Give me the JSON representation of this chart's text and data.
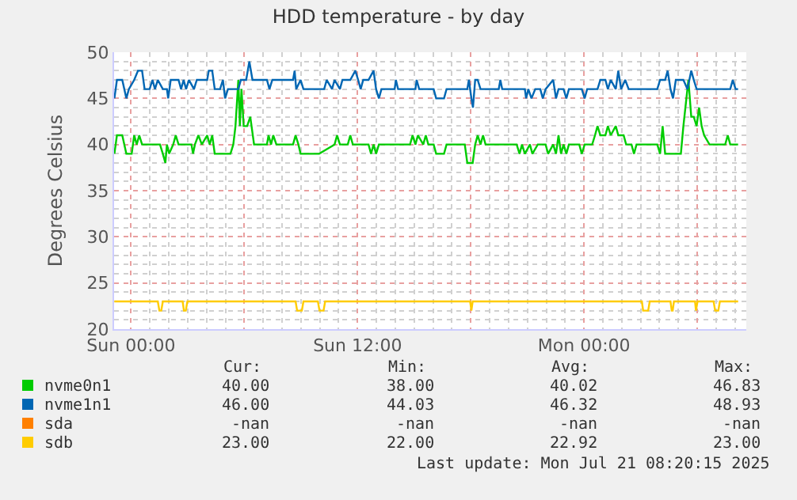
{
  "chart_data": {
    "type": "line",
    "title": "HDD temperature - by day",
    "ylabel": "Degrees Celsius",
    "xlim": [
      "2025-07-19T23:06",
      "2025-07-21T08:36"
    ],
    "ylim": [
      20,
      50
    ],
    "xticks": [
      {
        "value": "2025-07-20T00:00",
        "label": "Sun 00:00"
      },
      {
        "value": "2025-07-20T06:00",
        "label": null
      },
      {
        "value": "2025-07-20T12:00",
        "label": "Sun 12:00"
      },
      {
        "value": "2025-07-20T18:00",
        "label": null
      },
      {
        "value": "2025-07-21T00:00",
        "label": "Mon 00:00"
      },
      {
        "value": "2025-07-21T06:00",
        "label": null
      }
    ],
    "yticks": [
      20,
      25,
      30,
      35,
      40,
      45,
      50
    ],
    "grid": true,
    "legend": "bottom",
    "marker": "none",
    "line_style": "solid",
    "series": [
      {
        "name": "nvme0n1",
        "color": "#00cc00",
        "x": [
          "2025-07-19T23:07",
          "2025-07-19T23:15",
          "2025-07-19T23:32",
          "2025-07-19T23:45",
          "2025-07-20T00:02",
          "2025-07-20T00:10",
          "2025-07-20T00:18",
          "2025-07-20T00:26",
          "2025-07-20T00:35",
          "2025-07-20T01:32",
          "2025-07-20T01:41",
          "2025-07-20T01:49",
          "2025-07-20T01:54",
          "2025-07-20T02:01",
          "2025-07-20T02:14",
          "2025-07-20T02:22",
          "2025-07-20T02:31",
          "2025-07-20T03:12",
          "2025-07-20T03:17",
          "2025-07-20T03:23",
          "2025-07-20T03:34",
          "2025-07-20T03:45",
          "2025-07-20T04:02",
          "2025-07-20T04:10",
          "2025-07-20T04:18",
          "2025-07-20T04:26",
          "2025-07-20T05:16",
          "2025-07-20T05:25",
          "2025-07-20T05:32",
          "2025-07-20T05:41",
          "2025-07-20T05:46",
          "2025-07-20T05:51",
          "2025-07-20T05:58",
          "2025-07-20T06:09",
          "2025-07-20T06:19",
          "2025-07-20T06:31",
          "2025-07-20T07:12",
          "2025-07-20T07:17",
          "2025-07-20T07:25",
          "2025-07-20T07:32",
          "2025-07-20T07:42",
          "2025-07-20T08:35",
          "2025-07-20T08:43",
          "2025-07-20T08:52",
          "2025-07-20T08:59",
          "2025-07-20T09:58",
          "2025-07-20T10:47",
          "2025-07-20T10:55",
          "2025-07-20T11:04",
          "2025-07-20T11:29",
          "2025-07-20T11:37",
          "2025-07-20T11:45",
          "2025-07-20T12:35",
          "2025-07-20T12:43",
          "2025-07-20T12:51",
          "2025-07-20T12:59",
          "2025-07-20T13:08",
          "2025-07-20T14:47",
          "2025-07-20T14:55",
          "2025-07-20T15:04",
          "2025-07-20T15:12",
          "2025-07-20T15:29",
          "2025-07-20T15:37",
          "2025-07-20T15:45",
          "2025-07-20T16:02",
          "2025-07-20T16:10",
          "2025-07-20T16:35",
          "2025-07-20T16:43",
          "2025-07-20T17:41",
          "2025-07-20T17:49",
          "2025-07-20T18:06",
          "2025-07-20T18:14",
          "2025-07-20T18:22",
          "2025-07-20T18:31",
          "2025-07-20T18:39",
          "2025-07-20T18:47",
          "2025-07-20T20:26",
          "2025-07-20T20:35",
          "2025-07-20T20:43",
          "2025-07-20T20:52",
          "2025-07-20T21:08",
          "2025-07-20T21:16",
          "2025-07-20T21:33",
          "2025-07-20T21:58",
          "2025-07-20T22:06",
          "2025-07-20T22:22",
          "2025-07-20T22:31",
          "2025-07-20T22:39",
          "2025-07-20T22:47",
          "2025-07-20T22:55",
          "2025-07-20T23:04",
          "2025-07-20T23:12",
          "2025-07-20T23:45",
          "2025-07-20T23:53",
          "2025-07-21T00:02",
          "2025-07-21T00:26",
          "2025-07-21T00:35",
          "2025-07-21T00:43",
          "2025-07-21T00:52",
          "2025-07-21T01:08",
          "2025-07-21T01:16",
          "2025-07-21T01:25",
          "2025-07-21T01:41",
          "2025-07-21T01:49",
          "2025-07-21T02:06",
          "2025-07-21T02:14",
          "2025-07-21T02:31",
          "2025-07-21T02:39",
          "2025-07-21T02:47",
          "2025-07-21T03:53",
          "2025-07-21T04:02",
          "2025-07-21T04:10",
          "2025-07-21T04:18",
          "2025-07-21T05:08",
          "2025-07-21T05:16",
          "2025-07-21T05:32",
          "2025-07-21T05:41",
          "2025-07-21T05:49",
          "2025-07-21T05:58",
          "2025-07-21T06:06",
          "2025-07-21T06:14",
          "2025-07-21T06:22",
          "2025-07-21T06:39",
          "2025-07-21T07:29",
          "2025-07-21T07:37",
          "2025-07-21T07:45",
          "2025-07-21T08:10"
        ],
        "values": [
          39,
          41,
          41,
          39,
          39,
          41,
          40,
          41,
          40,
          40,
          39,
          38,
          40,
          39,
          40,
          41,
          40,
          40,
          39,
          40,
          41,
          40,
          41,
          40,
          41,
          39,
          39,
          40,
          42,
          47,
          42,
          46,
          42,
          42,
          43,
          40,
          40,
          41,
          40,
          41,
          40,
          40,
          41,
          40,
          39,
          39,
          40,
          41,
          40,
          40,
          41,
          40,
          40,
          39,
          40,
          39,
          40,
          40,
          41,
          40,
          41,
          40,
          41,
          40,
          40,
          39,
          39,
          40,
          40,
          38,
          38,
          40,
          41,
          40,
          41,
          40,
          40,
          39,
          40,
          39,
          40,
          39,
          40,
          40,
          39,
          40,
          39,
          41,
          39,
          40,
          39,
          40,
          40,
          39,
          40,
          40,
          41,
          42,
          41,
          41,
          42,
          41,
          42,
          41,
          41,
          40,
          40,
          39,
          40,
          40,
          39,
          42,
          39,
          39,
          42,
          47,
          43,
          43,
          42,
          44,
          42,
          41,
          40,
          40,
          41,
          40,
          40
        ]
      },
      {
        "name": "nvme1n1",
        "color": "#0066b3",
        "x": [
          "2025-07-19T23:07",
          "2025-07-19T23:15",
          "2025-07-19T23:32",
          "2025-07-19T23:45",
          "2025-07-19T23:53",
          "2025-07-20T00:10",
          "2025-07-20T00:22",
          "2025-07-20T00:35",
          "2025-07-20T00:43",
          "2025-07-20T00:59",
          "2025-07-20T01:08",
          "2025-07-20T01:16",
          "2025-07-20T01:25",
          "2025-07-20T01:41",
          "2025-07-20T01:54",
          "2025-07-20T01:58",
          "2025-07-20T02:06",
          "2025-07-20T02:31",
          "2025-07-20T02:39",
          "2025-07-20T02:47",
          "2025-07-20T02:55",
          "2025-07-20T03:04",
          "2025-07-20T03:20",
          "2025-07-20T03:29",
          "2025-07-20T04:02",
          "2025-07-20T04:07",
          "2025-07-20T04:18",
          "2025-07-20T04:26",
          "2025-07-20T04:43",
          "2025-07-20T04:52",
          "2025-07-20T04:59",
          "2025-07-20T05:08",
          "2025-07-20T05:41",
          "2025-07-20T05:49",
          "2025-07-20T06:06",
          "2025-07-20T06:16",
          "2025-07-20T06:26",
          "2025-07-20T07:12",
          "2025-07-20T07:20",
          "2025-07-20T07:29",
          "2025-07-20T08:35",
          "2025-07-20T08:40",
          "2025-07-20T08:45",
          "2025-07-20T08:59",
          "2025-07-20T09:08",
          "2025-07-20T09:41",
          "2025-07-20T10:14",
          "2025-07-20T10:22",
          "2025-07-20T10:39",
          "2025-07-20T10:47",
          "2025-07-20T11:04",
          "2025-07-20T11:12",
          "2025-07-20T11:37",
          "2025-07-20T11:53",
          "2025-07-20T12:02",
          "2025-07-20T12:10",
          "2025-07-20T12:18",
          "2025-07-20T12:35",
          "2025-07-20T12:51",
          "2025-07-20T12:59",
          "2025-07-20T13:08",
          "2025-07-20T13:16",
          "2025-07-20T13:58",
          "2025-07-20T14:02",
          "2025-07-20T14:09",
          "2025-07-20T15:04",
          "2025-07-20T15:08",
          "2025-07-20T15:16",
          "2025-07-20T16:02",
          "2025-07-20T16:10",
          "2025-07-20T16:35",
          "2025-07-20T16:43",
          "2025-07-20T17:49",
          "2025-07-20T17:54",
          "2025-07-20T18:02",
          "2025-07-20T18:07",
          "2025-07-20T18:14",
          "2025-07-20T18:22",
          "2025-07-20T18:31",
          "2025-07-20T19:29",
          "2025-07-20T19:34",
          "2025-07-20T19:40",
          "2025-07-20T20:52",
          "2025-07-20T20:56",
          "2025-07-20T21:03",
          "2025-07-20T21:13",
          "2025-07-20T21:25",
          "2025-07-20T21:41",
          "2025-07-20T21:49",
          "2025-07-20T21:58",
          "2025-07-20T22:22",
          "2025-07-20T22:31",
          "2025-07-20T22:39",
          "2025-07-20T22:55",
          "2025-07-20T23:04",
          "2025-07-20T23:12",
          "2025-07-20T23:53",
          "2025-07-21T00:02",
          "2025-07-21T00:10",
          "2025-07-21T00:43",
          "2025-07-21T00:52",
          "2025-07-21T01:08",
          "2025-07-21T01:16",
          "2025-07-21T01:25",
          "2025-07-21T01:41",
          "2025-07-21T01:49",
          "2025-07-21T01:58",
          "2025-07-21T02:11",
          "2025-07-21T02:22",
          "2025-07-21T03:53",
          "2025-07-21T04:02",
          "2025-07-21T04:18",
          "2025-07-21T04:26",
          "2025-07-21T04:35",
          "2025-07-21T04:43",
          "2025-07-21T04:52",
          "2025-07-21T05:16",
          "2025-07-21T05:29",
          "2025-07-21T05:41",
          "2025-07-21T05:49",
          "2025-07-21T05:58",
          "2025-07-21T07:45",
          "2025-07-21T07:53",
          "2025-07-21T08:02",
          "2025-07-21T08:10"
        ],
        "values": [
          45,
          47,
          47,
          45,
          46,
          47,
          48,
          48,
          46,
          46,
          47,
          46,
          47,
          46,
          46,
          45,
          47,
          47,
          46,
          47,
          46,
          47,
          46,
          47,
          47,
          48,
          48,
          46,
          46,
          47,
          45,
          46,
          46,
          47,
          47,
          49,
          47,
          47,
          46,
          47,
          47,
          48,
          46,
          47,
          46,
          46,
          46,
          47,
          46,
          47,
          46,
          47,
          47,
          48,
          47,
          46,
          47,
          47,
          48,
          46,
          45,
          46,
          46,
          47,
          46,
          46,
          47,
          46,
          46,
          45,
          45,
          46,
          46,
          47,
          45,
          44,
          47,
          47,
          46,
          46,
          47,
          46,
          46,
          45,
          46,
          45,
          46,
          46,
          45,
          46,
          47,
          45,
          46,
          46,
          45,
          46,
          46,
          45,
          46,
          46,
          47,
          47,
          46,
          47,
          46,
          48,
          46,
          47,
          46,
          46,
          47,
          47,
          48,
          46,
          45,
          47,
          47,
          46,
          48,
          47,
          46,
          46,
          47,
          46,
          46
        ]
      },
      {
        "name": "sda",
        "color": "#ff8000"
      },
      {
        "name": "sdb",
        "color": "#ffcc00",
        "x": [
          "2025-07-19T23:07",
          "2025-07-20T01:25",
          "2025-07-20T01:30",
          "2025-07-20T01:36",
          "2025-07-20T01:41",
          "2025-07-20T02:44",
          "2025-07-20T02:48",
          "2025-07-20T02:54",
          "2025-07-20T02:59",
          "2025-07-20T08:43",
          "2025-07-20T08:48",
          "2025-07-20T09:03",
          "2025-07-20T09:08",
          "2025-07-20T09:54",
          "2025-07-20T09:59",
          "2025-07-20T10:12",
          "2025-07-20T10:17",
          "2025-07-20T17:58",
          "2025-07-20T18:02",
          "2025-07-20T18:06",
          "2025-07-21T03:04",
          "2025-07-21T03:08",
          "2025-07-21T03:24",
          "2025-07-21T03:29",
          "2025-07-21T04:35",
          "2025-07-21T04:39",
          "2025-07-21T04:42",
          "2025-07-21T04:46",
          "2025-07-21T05:53",
          "2025-07-21T05:56",
          "2025-07-21T06:01",
          "2025-07-21T06:52",
          "2025-07-21T06:57",
          "2025-07-21T07:07",
          "2025-07-21T07:12",
          "2025-07-21T08:10"
        ],
        "values": [
          23,
          23,
          22,
          22,
          23,
          23,
          22,
          22,
          23,
          23,
          22,
          22,
          23,
          23,
          22,
          22,
          23,
          23,
          22,
          23,
          23,
          22,
          22,
          23,
          23,
          22,
          22,
          23,
          23,
          22,
          23,
          23,
          22,
          22,
          23,
          23
        ]
      }
    ],
    "annotations": [
      "Cur:",
      "Min:",
      "Avg:",
      "Max:",
      "40.00",
      "38.00",
      "40.02",
      "46.83",
      "46.00",
      "44.03",
      "46.32",
      "48.93",
      "-nan",
      "-nan",
      "-nan",
      "-nan",
      "23.00",
      "22.00",
      "22.92",
      "23.00",
      "Last update: Mon Jul 21 08:20:15 2025"
    ]
  }
}
